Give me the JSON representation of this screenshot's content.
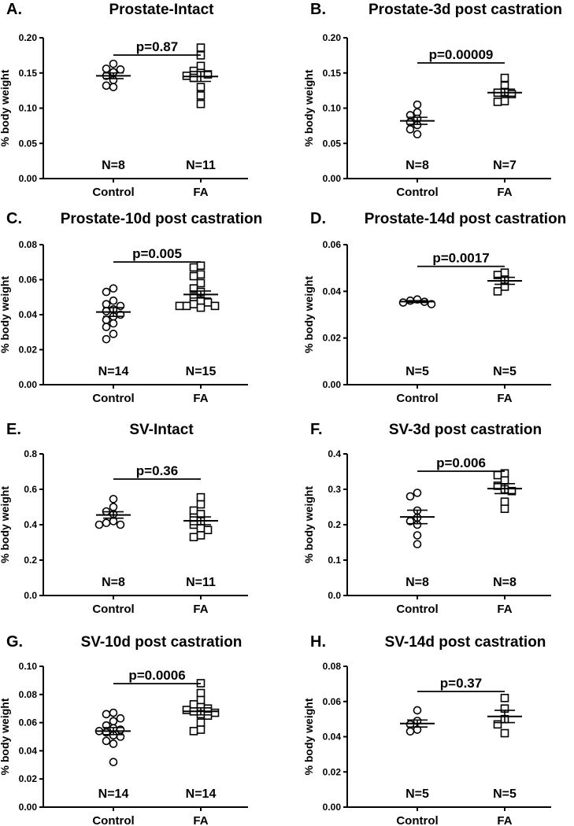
{
  "chart_data": [
    {
      "type": "scatter",
      "panel_label": "A.",
      "title": "Prostate-Intact",
      "ylabel": "% body weight",
      "categories": [
        "Control",
        "FA"
      ],
      "ylim": [
        0,
        0.2
      ],
      "yticks": [
        "0.00",
        "0.05",
        "0.10",
        "0.15",
        "0.20"
      ],
      "series": [
        {
          "name": "Control",
          "marker": "circle",
          "values": [
            0.163,
            0.156,
            0.155,
            0.151,
            0.146,
            0.14,
            0.132,
            0.13
          ],
          "mean": 0.146,
          "sem": 0.004
        },
        {
          "name": "FA",
          "marker": "square",
          "values": [
            0.186,
            0.175,
            0.16,
            0.153,
            0.15,
            0.148,
            0.146,
            0.143,
            0.13,
            0.118,
            0.106
          ],
          "mean": 0.145,
          "sem": 0.007
        }
      ],
      "p_value": "p=0.87",
      "n_labels": [
        "N=8",
        "N=11"
      ]
    },
    {
      "type": "scatter",
      "panel_label": "B.",
      "title": "Prostate-3d post castration",
      "ylabel": "% body weight",
      "categories": [
        "Control",
        "FA"
      ],
      "ylim": [
        0,
        0.2
      ],
      "yticks": [
        "0.00",
        "0.05",
        "0.10",
        "0.15",
        "0.20"
      ],
      "series": [
        {
          "name": "Control",
          "marker": "circle",
          "values": [
            0.105,
            0.094,
            0.09,
            0.085,
            0.08,
            0.076,
            0.07,
            0.063
          ],
          "mean": 0.082,
          "sem": 0.005
        },
        {
          "name": "FA",
          "marker": "square",
          "values": [
            0.143,
            0.132,
            0.123,
            0.122,
            0.12,
            0.11,
            0.109
          ],
          "mean": 0.122,
          "sem": 0.005
        }
      ],
      "p_value": "p=0.00009",
      "n_labels": [
        "N=8",
        "N=7"
      ]
    },
    {
      "type": "scatter",
      "panel_label": "C.",
      "title": "Prostate-10d post castration",
      "ylabel": "% body weight",
      "categories": [
        "Control",
        "FA"
      ],
      "ylim": [
        0,
        0.08
      ],
      "yticks": [
        "0.00",
        "0.02",
        "0.04",
        "0.06",
        "0.08"
      ],
      "series": [
        {
          "name": "Control",
          "marker": "circle",
          "values": [
            0.055,
            0.053,
            0.048,
            0.046,
            0.045,
            0.043,
            0.042,
            0.04,
            0.039,
            0.037,
            0.035,
            0.033,
            0.029,
            0.026
          ],
          "mean": 0.0415,
          "sem": 0.0025
        },
        {
          "name": "FA",
          "marker": "square",
          "values": [
            0.068,
            0.067,
            0.063,
            0.062,
            0.058,
            0.055,
            0.053,
            0.05,
            0.048,
            0.047,
            0.046,
            0.045,
            0.045,
            0.045,
            0.044
          ],
          "mean": 0.0515,
          "sem": 0.002
        }
      ],
      "p_value": "p=0.005",
      "n_labels": [
        "N=14",
        "N=15"
      ]
    },
    {
      "type": "scatter",
      "panel_label": "D.",
      "title": "Prostate-14d post castration",
      "ylabel": "% body weight",
      "categories": [
        "Control",
        "FA"
      ],
      "ylim": [
        0,
        0.06
      ],
      "yticks": [
        "0.00",
        "0.02",
        "0.04",
        "0.06"
      ],
      "series": [
        {
          "name": "Control",
          "marker": "circle",
          "values": [
            0.0365,
            0.036,
            0.0355,
            0.0352,
            0.0345
          ],
          "mean": 0.0356,
          "sem": 0.0004
        },
        {
          "name": "FA",
          "marker": "square",
          "values": [
            0.048,
            0.047,
            0.045,
            0.042,
            0.04
          ],
          "mean": 0.0445,
          "sem": 0.0015
        }
      ],
      "p_value": "p=0.0017",
      "n_labels": [
        "N=5",
        "N=5"
      ]
    },
    {
      "type": "scatter",
      "panel_label": "E.",
      "title": "SV-Intact",
      "ylabel": "% body weight",
      "categories": [
        "Control",
        "FA"
      ],
      "ylim": [
        0,
        0.8
      ],
      "yticks": [
        "0.0",
        "0.2",
        "0.4",
        "0.6",
        "0.8"
      ],
      "series": [
        {
          "name": "Control",
          "marker": "circle",
          "values": [
            0.545,
            0.5,
            0.475,
            0.46,
            0.42,
            0.41,
            0.4,
            0.4
          ],
          "mean": 0.455,
          "sem": 0.018
        },
        {
          "name": "FA",
          "marker": "square",
          "values": [
            0.555,
            0.515,
            0.48,
            0.46,
            0.44,
            0.42,
            0.4,
            0.38,
            0.37,
            0.34,
            0.33
          ],
          "mean": 0.422,
          "sem": 0.022
        }
      ],
      "p_value": "p=0.36",
      "n_labels": [
        "N=8",
        "N=11"
      ]
    },
    {
      "type": "scatter",
      "panel_label": "F.",
      "title": "SV-3d post castration",
      "ylabel": "% body weight",
      "categories": [
        "Control",
        "FA"
      ],
      "ylim": [
        0,
        0.4
      ],
      "yticks": [
        "0.0",
        "0.1",
        "0.2",
        "0.3",
        "0.4"
      ],
      "series": [
        {
          "name": "Control",
          "marker": "circle",
          "values": [
            0.29,
            0.28,
            0.24,
            0.22,
            0.21,
            0.2,
            0.17,
            0.145
          ],
          "mean": 0.222,
          "sem": 0.019
        },
        {
          "name": "FA",
          "marker": "square",
          "values": [
            0.345,
            0.34,
            0.325,
            0.31,
            0.3,
            0.295,
            0.265,
            0.245
          ],
          "mean": 0.302,
          "sem": 0.014
        }
      ],
      "p_value": "p=0.006",
      "n_labels": [
        "N=8",
        "N=8"
      ]
    },
    {
      "type": "scatter",
      "panel_label": "G.",
      "title": "SV-10d post castration",
      "ylabel": "% body weight",
      "categories": [
        "Control",
        "FA"
      ],
      "ylim": [
        0,
        0.1
      ],
      "yticks": [
        "0.00",
        "0.02",
        "0.04",
        "0.06",
        "0.08",
        "0.10"
      ],
      "series": [
        {
          "name": "Control",
          "marker": "circle",
          "values": [
            0.067,
            0.066,
            0.063,
            0.061,
            0.058,
            0.056,
            0.055,
            0.054,
            0.053,
            0.051,
            0.05,
            0.047,
            0.045,
            0.032
          ],
          "mean": 0.054,
          "sem": 0.0025
        },
        {
          "name": "FA",
          "marker": "square",
          "values": [
            0.088,
            0.081,
            0.076,
            0.073,
            0.071,
            0.07,
            0.069,
            0.068,
            0.067,
            0.066,
            0.065,
            0.06,
            0.055,
            0.054
          ],
          "mean": 0.068,
          "sem": 0.0025
        }
      ],
      "p_value": "p=0.0006",
      "n_labels": [
        "N=14",
        "N=14"
      ]
    },
    {
      "type": "scatter",
      "panel_label": "H.",
      "title": "SV-14d post castration",
      "ylabel": "% body weight",
      "categories": [
        "Control",
        "FA"
      ],
      "ylim": [
        0,
        0.08
      ],
      "yticks": [
        "0.00",
        "0.02",
        "0.04",
        "0.06",
        "0.08"
      ],
      "series": [
        {
          "name": "Control",
          "marker": "circle",
          "values": [
            0.055,
            0.049,
            0.047,
            0.044,
            0.043
          ],
          "mean": 0.0475,
          "sem": 0.002
        },
        {
          "name": "FA",
          "marker": "square",
          "values": [
            0.062,
            0.056,
            0.05,
            0.047,
            0.042
          ],
          "mean": 0.0515,
          "sem": 0.0035
        }
      ],
      "p_value": "p=0.37",
      "n_labels": [
        "N=5",
        "N=5"
      ]
    }
  ]
}
